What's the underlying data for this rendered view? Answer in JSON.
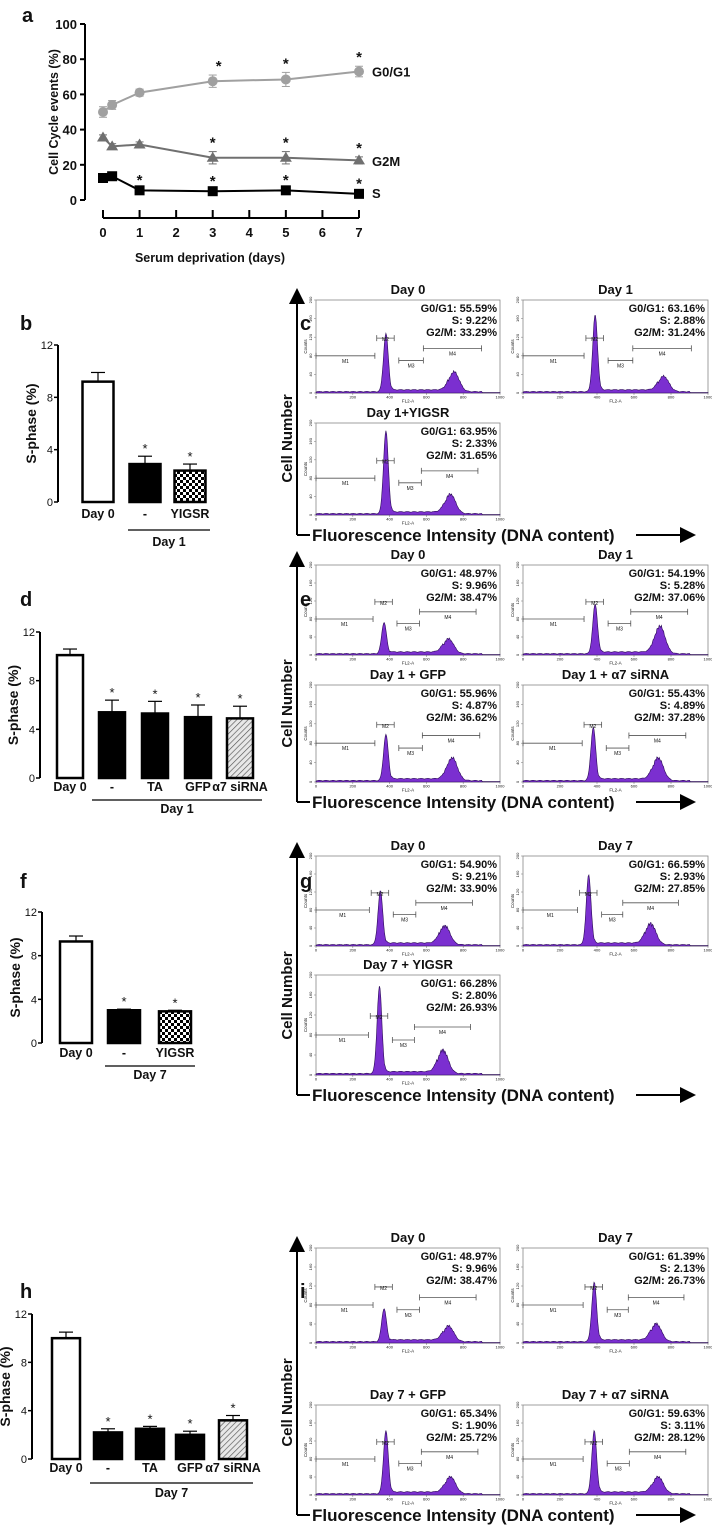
{
  "chart_data": [
    {
      "panel": "a",
      "type": "line",
      "xlabel": "Serum deprivation (days)",
      "ylabel": "Cell Cycle events (%)",
      "xlim": [
        0,
        7
      ],
      "ylim": [
        0,
        100
      ],
      "xticks": [
        "0",
        "1",
        "2",
        "3",
        "4",
        "5",
        "6",
        "7"
      ],
      "yticks": [
        "0",
        "20",
        "40",
        "60",
        "80",
        "100"
      ],
      "x": [
        0,
        0.25,
        1,
        3,
        5,
        7
      ],
      "series": [
        {
          "name": "G0/G1",
          "color": "#a0a0a0",
          "marker": "circle",
          "values": [
            50,
            54,
            61,
            67.5,
            68.5,
            73
          ],
          "errors": [
            3,
            2.5,
            2,
            3.5,
            4,
            3
          ],
          "significant": [
            false,
            false,
            false,
            true,
            true,
            true
          ]
        },
        {
          "name": "G2M",
          "color": "#707070",
          "marker": "triangle",
          "values": [
            35.5,
            30.5,
            31.5,
            24,
            24,
            22.5
          ],
          "errors": [
            1.5,
            1.5,
            1.5,
            3.5,
            3.5,
            2
          ],
          "significant": [
            false,
            false,
            false,
            true,
            true,
            true
          ]
        },
        {
          "name": "S",
          "color": "#000000",
          "marker": "square",
          "values": [
            12.5,
            13.5,
            5.5,
            5,
            5.5,
            3.5
          ],
          "errors": [
            1,
            1,
            0.8,
            0.8,
            0.8,
            0.8
          ],
          "significant": [
            false,
            false,
            true,
            true,
            true,
            true
          ]
        }
      ],
      "asterisk": "*"
    },
    {
      "panel": "b",
      "type": "bar",
      "ylabel": "S-phase (%)",
      "ylim": [
        0,
        12
      ],
      "yticks": [
        "0",
        "4",
        "8",
        "12"
      ],
      "categories": [
        "Day 0",
        "-",
        "YIGSR"
      ],
      "values": [
        9.2,
        2.9,
        2.4
      ],
      "errors": [
        0.7,
        0.6,
        0.5
      ],
      "fills": [
        "white",
        "black",
        "checker"
      ],
      "significant": [
        false,
        true,
        true
      ],
      "group_label": "Day 1",
      "group_start": 1,
      "asterisk": "*"
    },
    {
      "panel": "d",
      "type": "bar",
      "ylabel": "S-phase (%)",
      "ylim": [
        0,
        12
      ],
      "yticks": [
        "0",
        "4",
        "8",
        "12"
      ],
      "categories": [
        "Day 0",
        "-",
        "TA",
        "GFP",
        "α7 siRNA"
      ],
      "values": [
        10.1,
        5.4,
        5.3,
        5.0,
        4.9
      ],
      "errors": [
        0.5,
        1.0,
        1.0,
        1.0,
        1.0
      ],
      "fills": [
        "white",
        "black",
        "black",
        "black",
        "hatch"
      ],
      "significant": [
        false,
        true,
        true,
        true,
        true
      ],
      "group_label": "Day 1",
      "group_start": 1,
      "asterisk": "*"
    },
    {
      "panel": "f",
      "type": "bar",
      "ylabel": "S-phase (%)",
      "ylim": [
        0,
        12
      ],
      "yticks": [
        "0",
        "4",
        "8",
        "12"
      ],
      "categories": [
        "Day 0",
        "-",
        "YIGSR"
      ],
      "values": [
        9.3,
        3.0,
        2.9
      ],
      "errors": [
        0.5,
        0.1,
        0.1
      ],
      "fills": [
        "white",
        "black",
        "checker"
      ],
      "significant": [
        false,
        true,
        true
      ],
      "group_label": "Day 7",
      "group_start": 1,
      "asterisk": "*"
    },
    {
      "panel": "h",
      "type": "bar",
      "ylabel": "S-phase (%)",
      "ylim": [
        0,
        12
      ],
      "yticks": [
        "0",
        "4",
        "8",
        "12"
      ],
      "categories": [
        "Day 0",
        "-",
        "TA",
        "GFP",
        "α7 siRNA"
      ],
      "values": [
        10.0,
        2.2,
        2.5,
        2.0,
        3.2
      ],
      "errors": [
        0.5,
        0.3,
        0.2,
        0.3,
        0.4
      ],
      "fills": [
        "white",
        "black",
        "black",
        "black",
        "hatch"
      ],
      "significant": [
        false,
        true,
        true,
        true,
        true
      ],
      "group_label": "Day 7",
      "group_start": 1,
      "asterisk": "*"
    },
    {
      "panel": "c",
      "type": "histogram",
      "ylabel": "Cell Number",
      "xlabel": "Fluorescence Intensity (DNA content)",
      "plots": [
        {
          "title": "Day 0",
          "stats": [
            "G0/G1: 55.59%",
            "S:  9.22%",
            "G2/M: 33.29%"
          ],
          "g1_channel": 380,
          "g1_counts": 125,
          "g2_channel": 750,
          "g2_counts": 45
        },
        {
          "title": "Day 1",
          "stats": [
            "G0/G1: 63.16%",
            "S:  2.88%",
            "G2/M: 31.24%"
          ],
          "g1_channel": 390,
          "g1_counts": 165,
          "g2_channel": 760,
          "g2_counts": 35
        },
        {
          "title": "Day 1+YIGSR",
          "stats": [
            "G0/G1: 63.95%",
            "S:  2.33%",
            "G2/M: 31.65%"
          ],
          "g1_channel": 380,
          "g1_counts": 180,
          "g2_channel": 730,
          "g2_counts": 45
        }
      ]
    },
    {
      "panel": "e",
      "type": "histogram",
      "ylabel": "Cell Number",
      "xlabel": "Fluorescence Intensity (DNA content)",
      "plots": [
        {
          "title": "Day 0",
          "stats": [
            "G0/G1: 48.97%",
            "S:  9.96%",
            "G2/M: 38.47%"
          ],
          "g1_channel": 370,
          "g1_counts": 70,
          "g2_channel": 720,
          "g2_counts": 35
        },
        {
          "title": "Day 1",
          "stats": [
            "G0/G1: 54.19%",
            "S:  5.28%",
            "G2/M: 37.06%"
          ],
          "g1_channel": 390,
          "g1_counts": 110,
          "g2_channel": 740,
          "g2_counts": 65
        },
        {
          "title": "Day 1 + GFP",
          "stats": [
            "G0/G1: 55.96%",
            "S:  4.87%",
            "G2/M: 36.62%"
          ],
          "g1_channel": 380,
          "g1_counts": 95,
          "g2_channel": 740,
          "g2_counts": 50
        },
        {
          "title": "Day 1 + α7 siRNA",
          "stats": [
            "G0/G1: 55.43%",
            "S:  4.89%",
            "G2/M: 37.28%"
          ],
          "g1_channel": 380,
          "g1_counts": 110,
          "g2_channel": 730,
          "g2_counts": 50
        }
      ]
    },
    {
      "panel": "g",
      "type": "histogram",
      "ylabel": "Cell Number",
      "xlabel": "Fluorescence Intensity (DNA content)",
      "plots": [
        {
          "title": "Day 0",
          "stats": [
            "G0/G1: 54.90%",
            "S:  9.21%",
            "G2/M: 33.90%"
          ],
          "g1_channel": 350,
          "g1_counts": 120,
          "g2_channel": 700,
          "g2_counts": 45
        },
        {
          "title": "Day 7",
          "stats": [
            "G0/G1: 66.59%",
            "S:  2.93%",
            "G2/M: 27.85%"
          ],
          "g1_channel": 355,
          "g1_counts": 155,
          "g2_channel": 690,
          "g2_counts": 50
        },
        {
          "title": "Day 7 + YIGSR",
          "stats": [
            "G0/G1: 66.28%",
            "S:  2.80%",
            "G2/M: 26.93%"
          ],
          "g1_channel": 345,
          "g1_counts": 175,
          "g2_channel": 690,
          "g2_counts": 50
        }
      ]
    },
    {
      "panel": "i",
      "type": "histogram",
      "ylabel": "Cell Number",
      "xlabel": "Fluorescence Intensity (DNA content)",
      "plots": [
        {
          "title": "Day 0",
          "stats": [
            "G0/G1: 48.97%",
            "S:  9.96%",
            "G2/M: 38.47%"
          ],
          "g1_channel": 370,
          "g1_counts": 70,
          "g2_channel": 720,
          "g2_counts": 35
        },
        {
          "title": "Day 7",
          "stats": [
            "G0/G1: 61.39%",
            "S:  2.13%",
            "G2/M: 26.73%"
          ],
          "g1_channel": 385,
          "g1_counts": 125,
          "g2_channel": 720,
          "g2_counts": 40
        },
        {
          "title": "Day 7 + GFP",
          "stats": [
            "G0/G1: 65.34%",
            "S:  1.90%",
            "G2/M: 25.72%"
          ],
          "g1_channel": 380,
          "g1_counts": 140,
          "g2_channel": 730,
          "g2_counts": 40
        },
        {
          "title": "Day 7 + α7 siRNA",
          "stats": [
            "G0/G1: 59.63%",
            "S:  3.11%",
            "G2/M: 28.12%"
          ],
          "g1_channel": 385,
          "g1_counts": 140,
          "g2_channel": 730,
          "g2_counts": 40
        }
      ]
    }
  ],
  "histogram_axes": {
    "ylabel": "Counts",
    "xlabel": "FL2-A",
    "yticks": [
      "0",
      "40",
      "80",
      "120",
      "160",
      "200"
    ],
    "ylim": [
      0,
      200
    ],
    "xticks": [
      "0",
      "200",
      "400",
      "600",
      "800",
      "1000"
    ],
    "xlim": [
      0,
      1000
    ],
    "markers": [
      "M1",
      "M2",
      "M3",
      "M4"
    ],
    "fill_color": "#7b2fd0"
  }
}
